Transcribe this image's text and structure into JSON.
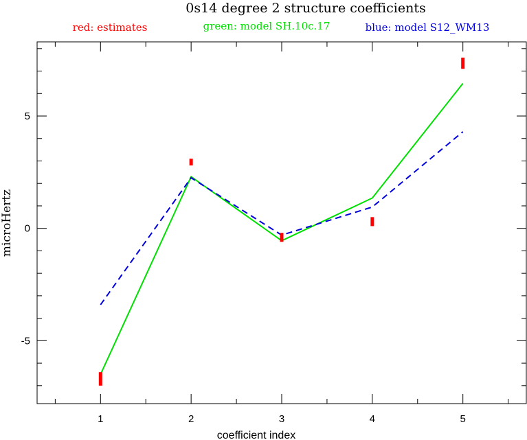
{
  "chart_data": {
    "type": "line",
    "title": "0s14 degree 2 structure coefficients",
    "xlabel": "coefficient index",
    "ylabel": "microHertz",
    "xlim": [
      0.3,
      5.7
    ],
    "ylim": [
      -7.8,
      8.3
    ],
    "x": [
      1,
      2,
      3,
      4,
      5
    ],
    "x_ticks": [
      "1",
      "2",
      "3",
      "4",
      "5"
    ],
    "y_ticks": [
      {
        "value": 5,
        "label": "5"
      },
      {
        "value": 0,
        "label": "0"
      },
      {
        "value": -5,
        "label": "-5"
      }
    ],
    "estimates": {
      "name": "red: estimates",
      "color": "#ff0000",
      "low": [
        -7.0,
        2.8,
        -0.6,
        0.1,
        7.1
      ],
      "high": [
        -6.4,
        3.1,
        -0.2,
        0.5,
        7.6
      ]
    },
    "series": [
      {
        "name": "green: model SH.10c.17",
        "color": "#00e000",
        "dash": false,
        "values": [
          -6.5,
          2.3,
          -0.55,
          1.35,
          6.45
        ]
      },
      {
        "name": "blue: model S12_WM13",
        "color": "#0000dd",
        "dash": true,
        "values": [
          -3.4,
          2.25,
          -0.3,
          0.95,
          4.3
        ]
      }
    ]
  }
}
